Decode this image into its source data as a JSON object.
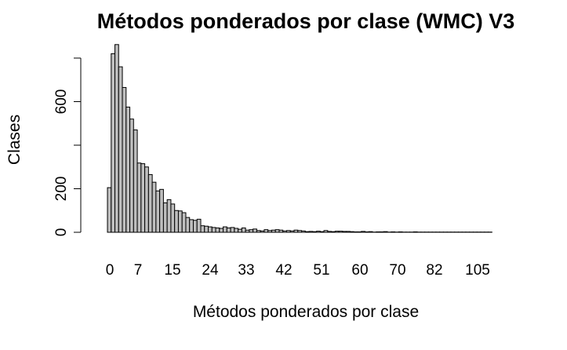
{
  "chart_data": {
    "type": "bar",
    "title": "Métodos ponderados por clase (WMC) V3",
    "xlabel": "Métodos ponderados por clase",
    "ylabel": "Clases",
    "x_tick_labels": [
      "0",
      "7",
      "15",
      "24",
      "33",
      "42",
      "51",
      "60",
      "70",
      "82",
      "105"
    ],
    "y_ticks": [
      0,
      200,
      400,
      600
    ],
    "y_tick_labels": [
      "0",
      "200",
      "",
      "600"
    ],
    "ylim": [
      0,
      850
    ],
    "grid": false,
    "bar_color": "#bebebe",
    "values": [
      205,
      820,
      862,
      760,
      665,
      575,
      520,
      470,
      318,
      315,
      300,
      265,
      230,
      190,
      197,
      135,
      150,
      130,
      100,
      98,
      90,
      68,
      58,
      55,
      60,
      30,
      28,
      25,
      22,
      20,
      18,
      25,
      20,
      22,
      18,
      14,
      20,
      10,
      12,
      15,
      8,
      6,
      12,
      8,
      10,
      12,
      10,
      6,
      8,
      6,
      10,
      8,
      6,
      3,
      4,
      3,
      5,
      3,
      8,
      4,
      3,
      5,
      5,
      4,
      4,
      3,
      2,
      2,
      4,
      2,
      3,
      1,
      2,
      2,
      3,
      1,
      2,
      1,
      2,
      1,
      1,
      1,
      2,
      1,
      1,
      1,
      1,
      1,
      1,
      1,
      1,
      1,
      1,
      1,
      1,
      1,
      1,
      1,
      1,
      1,
      1,
      1,
      1
    ]
  }
}
